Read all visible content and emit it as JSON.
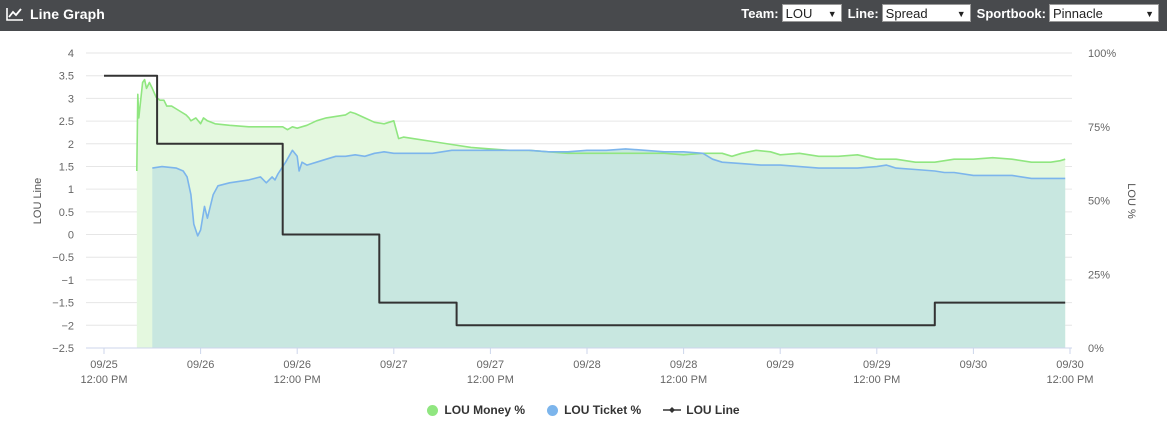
{
  "header": {
    "title": "Line Graph",
    "icon": "line-chart-icon",
    "team_label": "Team:",
    "team_value": "LOU",
    "line_label": "Line:",
    "line_value": "Spread",
    "sportbook_label": "Sportbook:",
    "sportbook_value": "Pinnacle"
  },
  "chart_data": {
    "type": "line",
    "x_axis": {
      "ticks": [
        {
          "x": 0,
          "line1": "09/25",
          "line2": "12:00 PM"
        },
        {
          "x": 1,
          "line1": "09/26",
          "line2": ""
        },
        {
          "x": 2,
          "line1": "09/26",
          "line2": "12:00 PM"
        },
        {
          "x": 3,
          "line1": "09/27",
          "line2": ""
        },
        {
          "x": 4,
          "line1": "09/27",
          "line2": "12:00 PM"
        },
        {
          "x": 5,
          "line1": "09/28",
          "line2": ""
        },
        {
          "x": 6,
          "line1": "09/28",
          "line2": "12:00 PM"
        },
        {
          "x": 7,
          "line1": "09/29",
          "line2": ""
        },
        {
          "x": 8,
          "line1": "09/29",
          "line2": "12:00 PM"
        },
        {
          "x": 9,
          "line1": "09/30",
          "line2": ""
        },
        {
          "x": 10,
          "line1": "09/30",
          "line2": "12:00 PM"
        }
      ],
      "range": [
        0,
        10
      ]
    },
    "y_left": {
      "label": "LOU Line",
      "range": [
        -2.5,
        4
      ],
      "ticks": [
        4,
        3.5,
        3,
        2.5,
        2,
        1.5,
        1,
        0.5,
        0,
        -0.5,
        -1,
        -1.5,
        -2,
        -2.5
      ],
      "tick_labels": [
        "4",
        "3.5",
        "3",
        "2.5",
        "2",
        "1.5",
        "1",
        "0.5",
        "0",
        "−0.5",
        "−1",
        "−1.5",
        "−2",
        "−2.5"
      ]
    },
    "y_right": {
      "label": "LOU %",
      "range": [
        0,
        100
      ],
      "ticks": [
        0,
        25,
        50,
        75,
        100
      ],
      "tick_labels": [
        "0%",
        "25%",
        "50%",
        "75%",
        "100%"
      ]
    },
    "grid": true,
    "legend_position": "bottom-center",
    "series": [
      {
        "name": "LOU Money %",
        "axis": "right",
        "color": "#90e680",
        "fill": "#e4f8df",
        "points": [
          [
            0.34,
            60
          ],
          [
            0.35,
            86
          ],
          [
            0.36,
            78
          ],
          [
            0.38,
            84
          ],
          [
            0.4,
            90
          ],
          [
            0.42,
            91
          ],
          [
            0.44,
            88
          ],
          [
            0.47,
            90
          ],
          [
            0.5,
            88
          ],
          [
            0.54,
            85
          ],
          [
            0.58,
            84
          ],
          [
            0.62,
            84
          ],
          [
            0.65,
            82
          ],
          [
            0.7,
            82
          ],
          [
            0.75,
            81
          ],
          [
            0.8,
            80
          ],
          [
            0.85,
            79
          ],
          [
            0.88,
            78
          ],
          [
            0.9,
            77
          ],
          [
            0.95,
            78
          ],
          [
            1.0,
            76
          ],
          [
            1.03,
            78
          ],
          [
            1.07,
            77
          ],
          [
            1.15,
            76
          ],
          [
            1.3,
            75.5
          ],
          [
            1.5,
            75
          ],
          [
            1.85,
            75
          ],
          [
            1.9,
            74
          ],
          [
            1.95,
            75
          ],
          [
            2.0,
            74.5
          ],
          [
            2.1,
            75.5
          ],
          [
            2.2,
            77
          ],
          [
            2.3,
            78
          ],
          [
            2.4,
            78.5
          ],
          [
            2.5,
            79
          ],
          [
            2.55,
            80
          ],
          [
            2.6,
            79.5
          ],
          [
            2.7,
            78
          ],
          [
            2.8,
            76.5
          ],
          [
            2.9,
            76
          ],
          [
            3.0,
            77
          ],
          [
            3.05,
            71
          ],
          [
            3.1,
            71.5
          ],
          [
            3.2,
            71
          ],
          [
            3.4,
            70
          ],
          [
            3.6,
            69
          ],
          [
            3.8,
            68
          ],
          [
            4.0,
            67.5
          ],
          [
            4.2,
            67
          ],
          [
            4.4,
            67
          ],
          [
            4.6,
            66.5
          ],
          [
            4.8,
            66
          ],
          [
            5.0,
            66
          ],
          [
            5.2,
            66
          ],
          [
            5.4,
            66
          ],
          [
            5.6,
            66
          ],
          [
            5.8,
            66
          ],
          [
            6.0,
            65.5
          ],
          [
            6.2,
            66
          ],
          [
            6.4,
            66
          ],
          [
            6.5,
            65
          ],
          [
            6.6,
            66
          ],
          [
            6.75,
            67
          ],
          [
            6.9,
            66.5
          ],
          [
            7.0,
            65.5
          ],
          [
            7.2,
            66
          ],
          [
            7.4,
            65
          ],
          [
            7.6,
            65
          ],
          [
            7.8,
            65.5
          ],
          [
            8.0,
            64
          ],
          [
            8.2,
            64
          ],
          [
            8.4,
            63
          ],
          [
            8.6,
            63
          ],
          [
            8.8,
            64
          ],
          [
            9.0,
            64
          ],
          [
            9.2,
            64.5
          ],
          [
            9.4,
            64
          ],
          [
            9.6,
            63
          ],
          [
            9.8,
            63
          ],
          [
            9.9,
            63.5
          ],
          [
            9.95,
            64
          ]
        ]
      },
      {
        "name": "LOU Ticket %",
        "axis": "right",
        "color": "#7cb5ec",
        "fill": "#c8e7e0",
        "points": [
          [
            0.5,
            61
          ],
          [
            0.6,
            61.5
          ],
          [
            0.75,
            61
          ],
          [
            0.82,
            60
          ],
          [
            0.86,
            58
          ],
          [
            0.9,
            52
          ],
          [
            0.93,
            42
          ],
          [
            0.97,
            38
          ],
          [
            1.0,
            40
          ],
          [
            1.04,
            48
          ],
          [
            1.07,
            44
          ],
          [
            1.1,
            48
          ],
          [
            1.13,
            52
          ],
          [
            1.18,
            55
          ],
          [
            1.3,
            56
          ],
          [
            1.5,
            57
          ],
          [
            1.62,
            58
          ],
          [
            1.68,
            56
          ],
          [
            1.74,
            58
          ],
          [
            1.77,
            57
          ],
          [
            1.8,
            59
          ],
          [
            1.88,
            63
          ],
          [
            1.95,
            67
          ],
          [
            2.0,
            65
          ],
          [
            2.02,
            60
          ],
          [
            2.05,
            63
          ],
          [
            2.1,
            62
          ],
          [
            2.2,
            63
          ],
          [
            2.3,
            64
          ],
          [
            2.4,
            65
          ],
          [
            2.5,
            65
          ],
          [
            2.6,
            65.5
          ],
          [
            2.7,
            65
          ],
          [
            2.8,
            66
          ],
          [
            2.9,
            66.5
          ],
          [
            3.0,
            66
          ],
          [
            3.2,
            66
          ],
          [
            3.4,
            66
          ],
          [
            3.6,
            67
          ],
          [
            3.8,
            67
          ],
          [
            4.0,
            67
          ],
          [
            4.2,
            67
          ],
          [
            4.4,
            67
          ],
          [
            4.6,
            66.5
          ],
          [
            4.8,
            66.5
          ],
          [
            5.0,
            67
          ],
          [
            5.2,
            67
          ],
          [
            5.4,
            67.5
          ],
          [
            5.6,
            67
          ],
          [
            5.8,
            66.5
          ],
          [
            6.0,
            66.5
          ],
          [
            6.2,
            66
          ],
          [
            6.3,
            64
          ],
          [
            6.4,
            63
          ],
          [
            6.6,
            62.5
          ],
          [
            6.8,
            62
          ],
          [
            7.0,
            62
          ],
          [
            7.2,
            61.5
          ],
          [
            7.4,
            61
          ],
          [
            7.6,
            61
          ],
          [
            7.8,
            61
          ],
          [
            8.0,
            61.5
          ],
          [
            8.1,
            62
          ],
          [
            8.2,
            61
          ],
          [
            8.4,
            60.5
          ],
          [
            8.6,
            60
          ],
          [
            8.7,
            59.5
          ],
          [
            8.8,
            59.5
          ],
          [
            9.0,
            58.5
          ],
          [
            9.2,
            58.5
          ],
          [
            9.4,
            58.5
          ],
          [
            9.6,
            57.5
          ],
          [
            9.8,
            57.5
          ],
          [
            9.95,
            57.5
          ]
        ]
      },
      {
        "name": "LOU Line",
        "axis": "left",
        "color": "#333333",
        "step": true,
        "points": [
          [
            0.0,
            3.5
          ],
          [
            0.55,
            3.5
          ],
          [
            0.55,
            2.0
          ],
          [
            1.85,
            2.0
          ],
          [
            1.85,
            0.0
          ],
          [
            2.85,
            0.0
          ],
          [
            2.85,
            -1.5
          ],
          [
            3.65,
            -1.5
          ],
          [
            3.65,
            -2.0
          ],
          [
            8.6,
            -2.0
          ],
          [
            8.6,
            -1.5
          ],
          [
            9.95,
            -1.5
          ]
        ]
      }
    ]
  },
  "legend": {
    "items": [
      {
        "label": "LOU Money %",
        "color": "#90e680",
        "symbol": "dot"
      },
      {
        "label": "LOU Ticket %",
        "color": "#7cb5ec",
        "symbol": "dot"
      },
      {
        "label": "LOU Line",
        "color": "#333333",
        "symbol": "line"
      }
    ]
  }
}
